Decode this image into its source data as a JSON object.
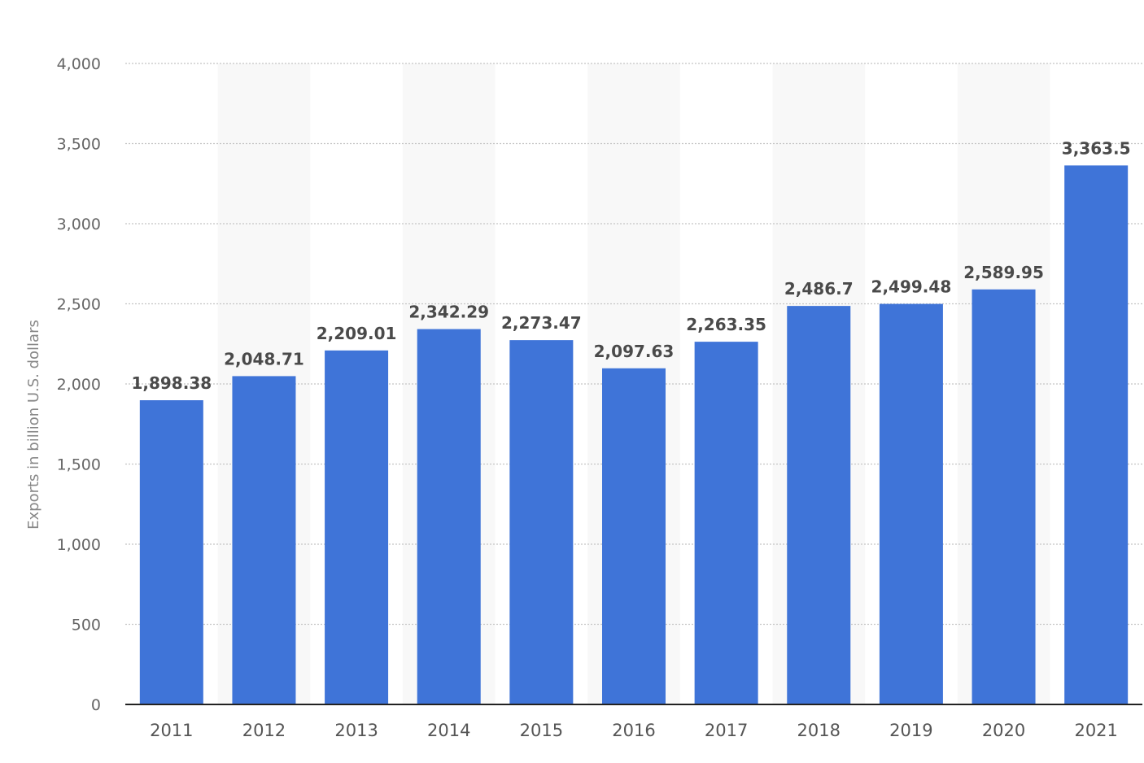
{
  "chart_data": {
    "type": "bar",
    "title": "",
    "xlabel": "",
    "ylabel": "Exports in billion U.S. dollars",
    "categories": [
      "2011",
      "2012",
      "2013",
      "2014",
      "2015",
      "2016",
      "2017",
      "2018",
      "2019",
      "2020",
      "2021"
    ],
    "values": [
      1898.38,
      2048.71,
      2209.01,
      2342.29,
      2273.47,
      2097.63,
      2263.35,
      2486.7,
      2499.48,
      2589.95,
      3363.5
    ],
    "value_labels": [
      "1,898.38",
      "2,048.71",
      "2,209.01",
      "2,342.29",
      "2,273.47",
      "2,097.63",
      "2,263.35",
      "2,486.7",
      "2,499.48",
      "2,589.95",
      "3,363.5"
    ],
    "ylim": [
      0,
      4000
    ],
    "yticks": [
      0,
      500,
      1000,
      1500,
      2000,
      2500,
      3000,
      3500,
      4000
    ],
    "ytick_labels": [
      "0",
      "500",
      "1,000",
      "1,500",
      "2,000",
      "2,500",
      "3,000",
      "3,500",
      "4,000"
    ],
    "grid": true,
    "legend": "none",
    "bar_color": "#3f74d8",
    "band_color": "#f8f8f8"
  }
}
